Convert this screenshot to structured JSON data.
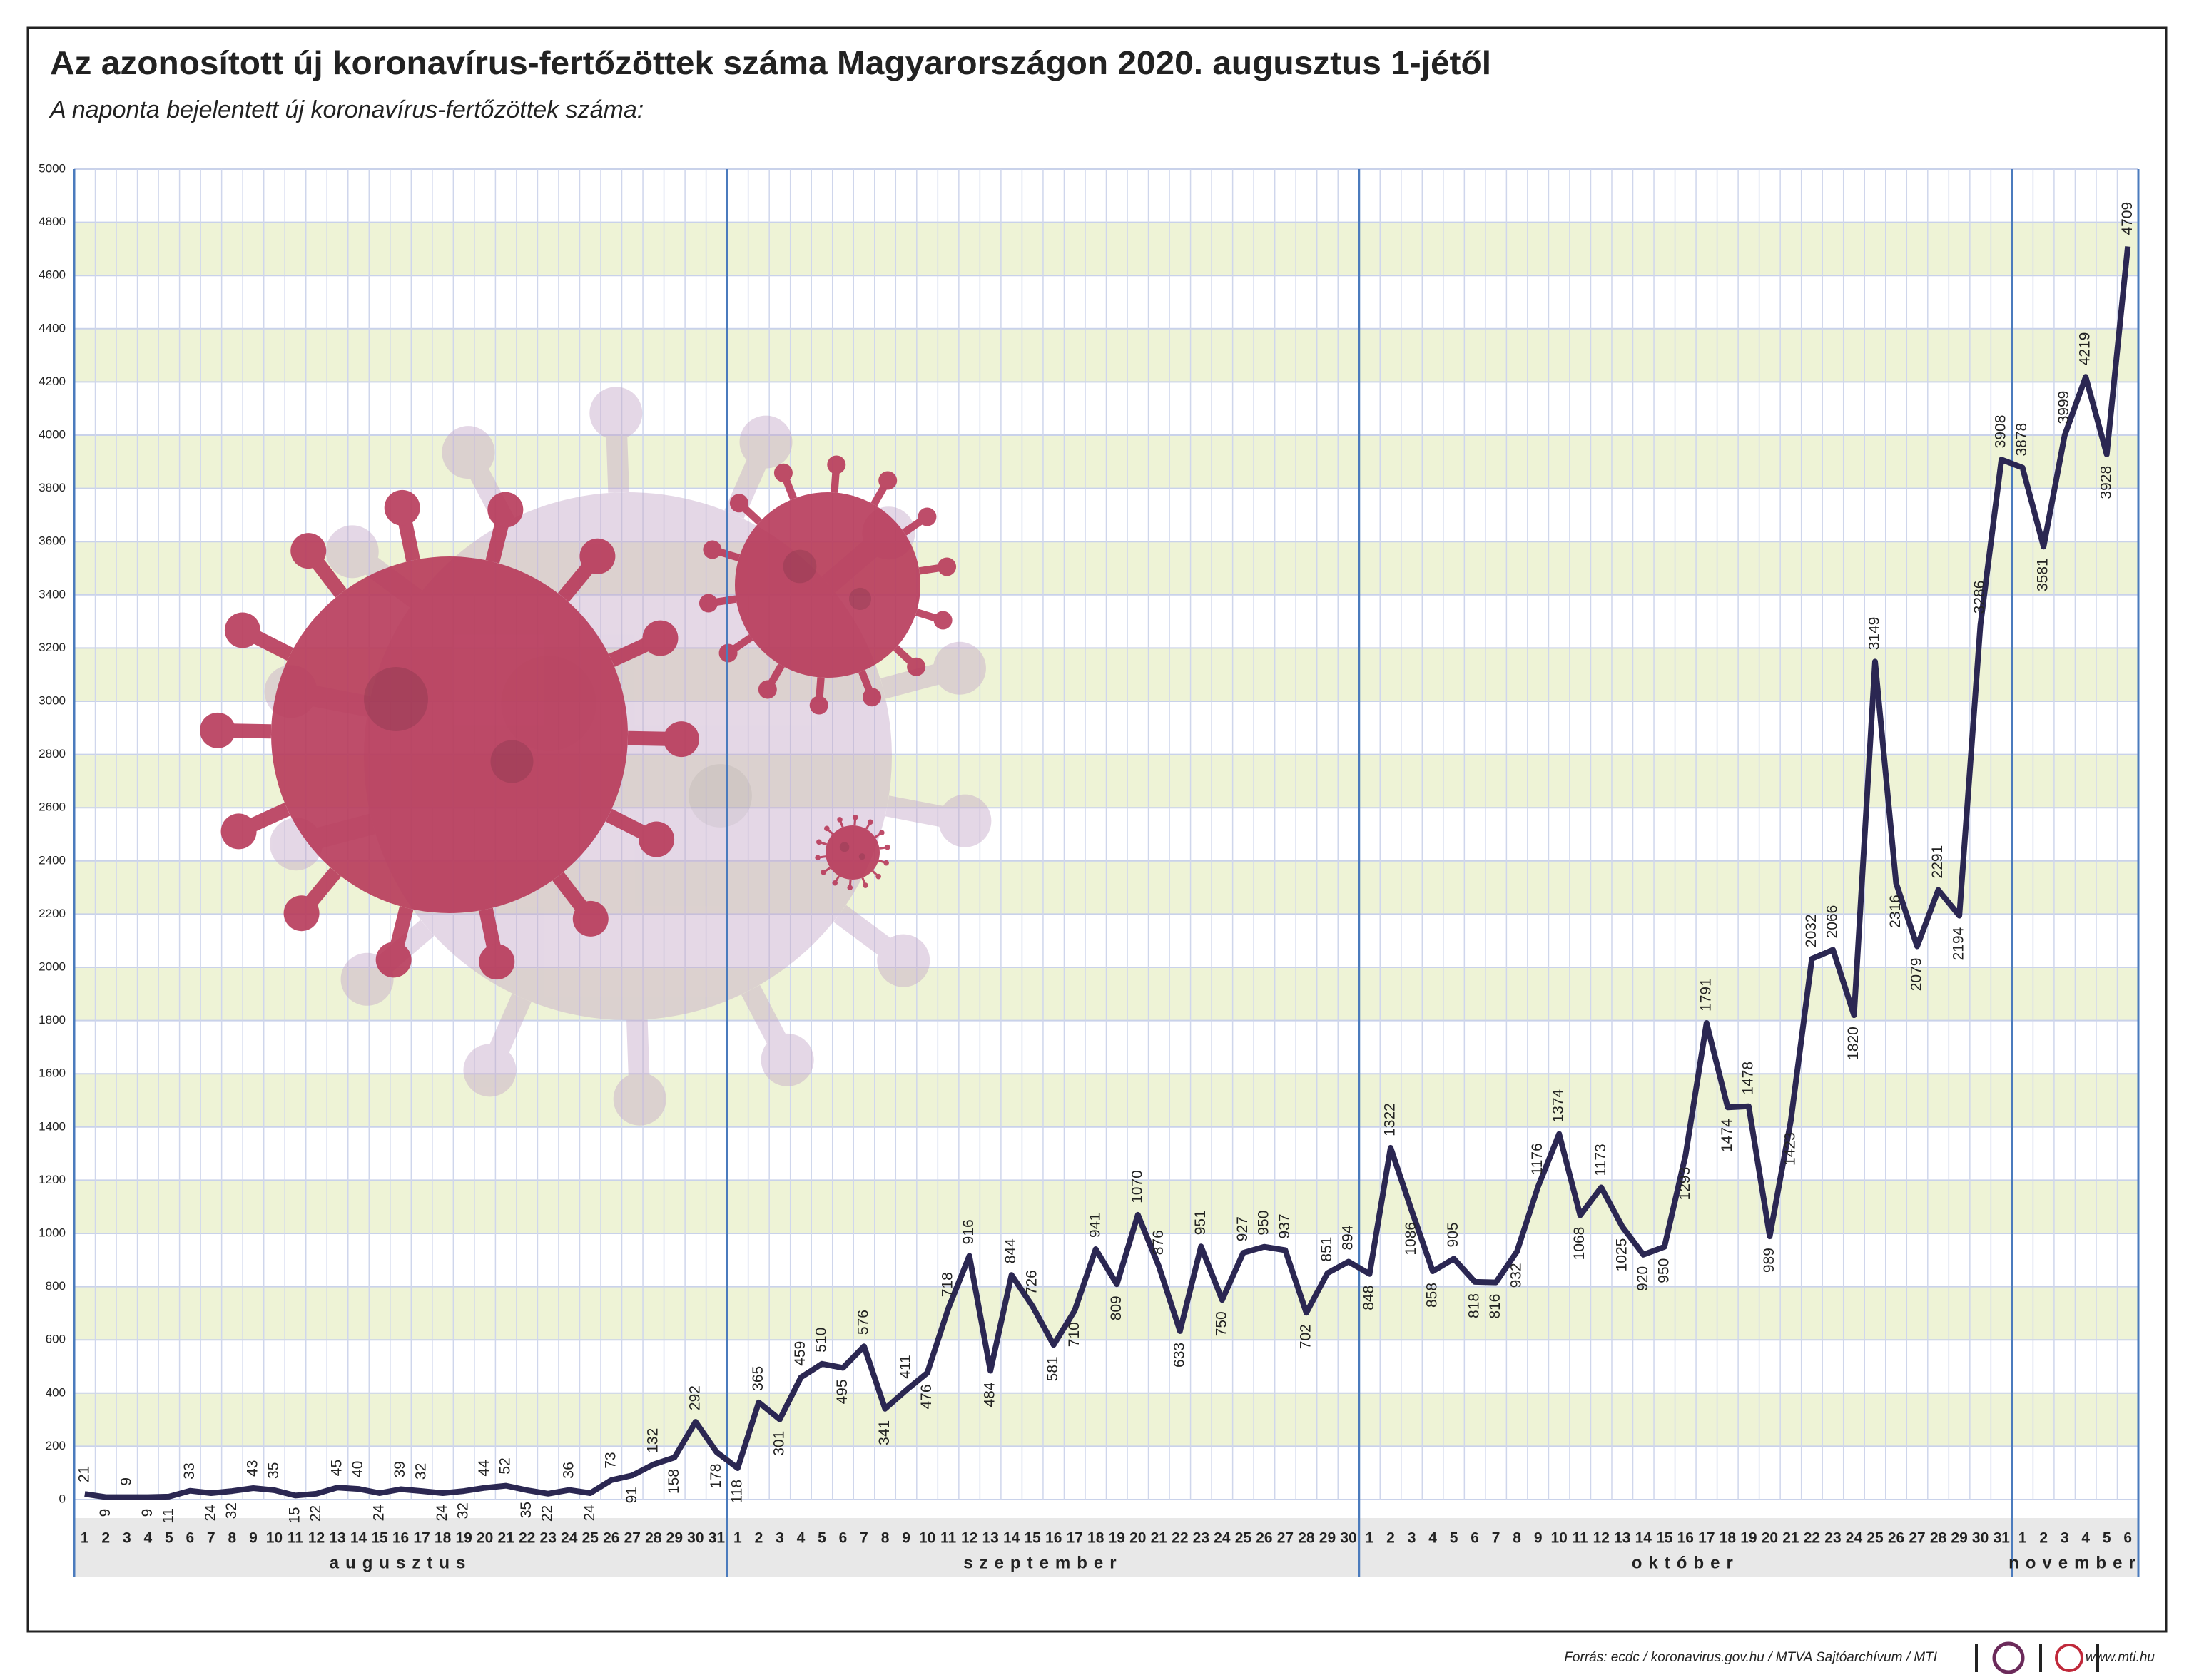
{
  "chart_data": {
    "type": "line",
    "title": "Az azonosított új koronavírus-fertőzöttek száma Magyarországon 2020. augusztus 1-jétől",
    "subtitle": "A naponta bejelentett új koronavírus-fertőzöttek száma:",
    "color": "#2b2752",
    "ylim": [
      0,
      5000
    ],
    "yticks": [
      0,
      200,
      400,
      600,
      800,
      1000,
      1200,
      1400,
      1600,
      1800,
      2000,
      2200,
      2400,
      2600,
      2800,
      3000,
      3200,
      3400,
      3600,
      3800,
      4000,
      4200,
      4400,
      4600,
      4800,
      5000
    ],
    "grid": true,
    "months": [
      {
        "name": "augusztus",
        "days": [
          1,
          2,
          3,
          4,
          5,
          6,
          7,
          8,
          9,
          10,
          11,
          12,
          13,
          14,
          15,
          16,
          17,
          18,
          19,
          20,
          21,
          22,
          23,
          24,
          25,
          26,
          27,
          28,
          29,
          30,
          31
        ],
        "values": [
          21,
          9,
          9,
          9,
          11,
          33,
          24,
          32,
          43,
          35,
          15,
          22,
          45,
          40,
          24,
          39,
          32,
          24,
          32,
          44,
          52,
          35,
          22,
          36,
          24,
          73,
          91,
          132,
          158,
          292,
          178
        ]
      },
      {
        "name": "szeptember",
        "days": [
          1,
          2,
          3,
          4,
          5,
          6,
          7,
          8,
          9,
          10,
          11,
          12,
          13,
          14,
          15,
          16,
          17,
          18,
          19,
          20,
          21,
          22,
          23,
          24,
          25,
          26,
          27,
          28,
          29,
          30
        ],
        "values": [
          118,
          365,
          301,
          459,
          510,
          495,
          576,
          341,
          411,
          476,
          718,
          916,
          484,
          844,
          726,
          581,
          710,
          941,
          809,
          1070,
          876,
          633,
          951,
          750,
          927,
          950,
          937,
          702,
          851,
          894
        ]
      },
      {
        "name": "október",
        "days": [
          1,
          2,
          3,
          4,
          5,
          6,
          7,
          8,
          9,
          10,
          11,
          12,
          13,
          14,
          15,
          16,
          17,
          18,
          19,
          20,
          21,
          22,
          23,
          24,
          25,
          26,
          27,
          28,
          29,
          30,
          31
        ],
        "values": [
          848,
          1322,
          1086,
          858,
          905,
          818,
          816,
          932,
          1176,
          1374,
          1068,
          1173,
          1025,
          920,
          950,
          1293,
          1791,
          1474,
          1478,
          989,
          1423,
          2032,
          2066,
          1820,
          3149,
          2316,
          2079,
          2291,
          2194,
          3286,
          3908
        ]
      },
      {
        "name": "november",
        "days": [
          1,
          2,
          3,
          4,
          5,
          6
        ],
        "values": [
          3878,
          3581,
          3999,
          4219,
          3928,
          4709
        ]
      }
    ],
    "source": "Forrás: ecdc / koronavirus.gov.hu / MTVA Sajtóarchívum / MTI",
    "website": "www.mti.hu"
  }
}
